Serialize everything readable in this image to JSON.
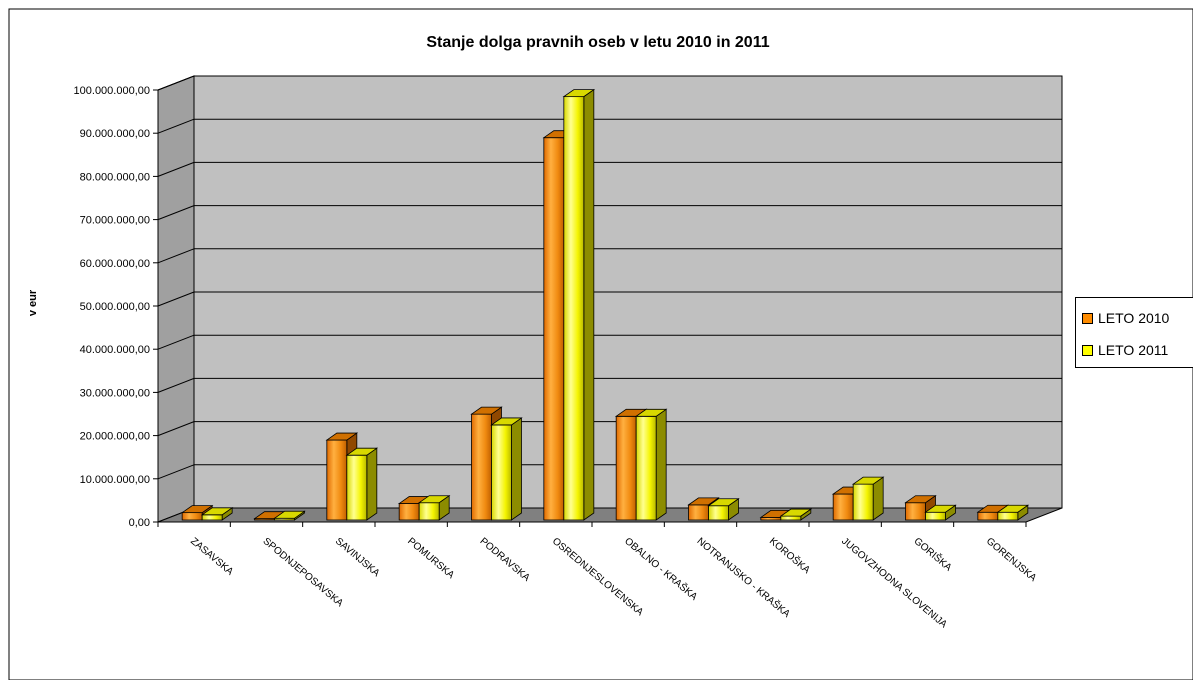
{
  "chart_data": {
    "type": "bar",
    "title": "Stanje dolga pravnih oseb v letu 2010 in 2011",
    "ylabel": "v eur",
    "xlabel": "",
    "ylim": [
      0,
      100000000
    ],
    "yticks": [
      0,
      10000000,
      20000000,
      30000000,
      40000000,
      50000000,
      60000000,
      70000000,
      80000000,
      90000000,
      100000000
    ],
    "ytick_labels": [
      "0,00",
      "10.000.000,00",
      "20.000.000,00",
      "30.000.000,00",
      "40.000.000,00",
      "50.000.000,00",
      "60.000.000,00",
      "70.000.000,00",
      "80.000.000,00",
      "90.000.000,00",
      "100.000.000,00"
    ],
    "categories": [
      "ZASAVSKA",
      "SPODNJEPOSAVSKA",
      "SAVINJSKA",
      "POMURSKA",
      "PODRAVSKA",
      "OSREDNJESLOVENSKA",
      "OBALNO - KRAŠKA",
      "NOTRANJSKO - KRAŠKA",
      "KOROŠKA",
      "JUGOVZHODNA SLOVENIJA",
      "GORIŠKA",
      "GORENJSKA"
    ],
    "series": [
      {
        "name": "LETO 2010",
        "color": "#FF8C00",
        "values": [
          1700000,
          300000,
          18500000,
          3800000,
          24500000,
          88500000,
          24000000,
          3500000,
          600000,
          6000000,
          4000000,
          1800000
        ]
      },
      {
        "name": "LETO 2011",
        "color": "#FFFF00",
        "values": [
          1200000,
          400000,
          15000000,
          4000000,
          22000000,
          98000000,
          24000000,
          3300000,
          900000,
          8300000,
          1800000,
          1800000
        ]
      }
    ],
    "grid": true,
    "legend_position": "right"
  }
}
